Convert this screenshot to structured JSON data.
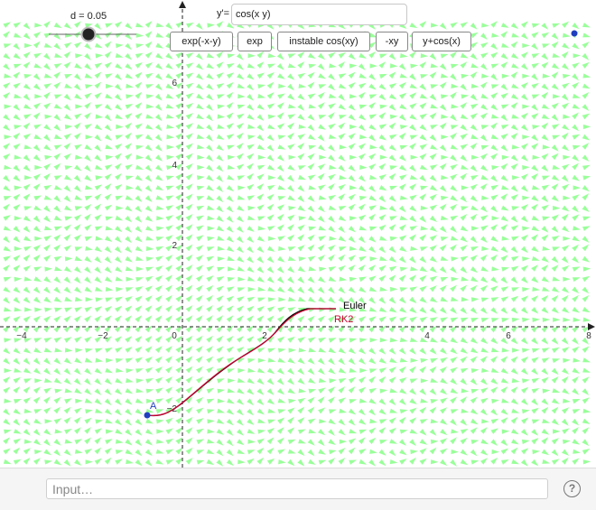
{
  "slider": {
    "label": "d = 0.05"
  },
  "equation": {
    "label": "y'=",
    "value": "cos(x y)"
  },
  "buttons": [
    "exp(-x-y)",
    "exp",
    "instable cos(xy)",
    "-xy",
    "y+cos(x)"
  ],
  "axes": {
    "x_ticks": [
      "−4",
      "−2",
      "0",
      "2",
      "4",
      "6",
      "8"
    ],
    "y_ticks": [
      "6",
      "4",
      "2",
      "−2"
    ]
  },
  "labels": {
    "point": "A",
    "euler": "Euler",
    "rk2": "RK2"
  },
  "footer": {
    "input_placeholder": "Input…",
    "help": "?"
  },
  "colors": {
    "field": "#99ff99",
    "euler": "#000000",
    "rk2": "#cc0033",
    "point": "#1f3fbf"
  }
}
